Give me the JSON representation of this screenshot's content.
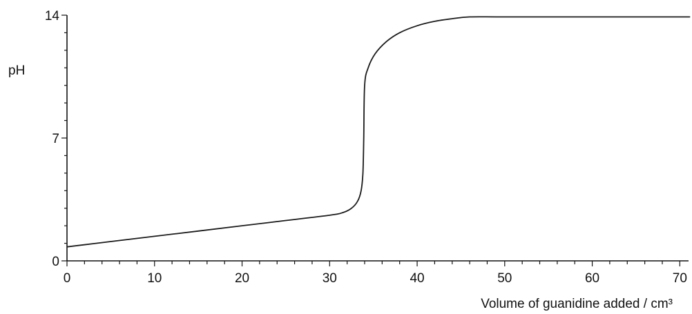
{
  "chart_data": {
    "type": "line",
    "title": "",
    "xlabel": "Volume of guanidine added / cm³",
    "ylabel": "pH",
    "xlim": [
      0,
      71
    ],
    "ylim": [
      0,
      14
    ],
    "x_ticks_major": [
      0,
      10,
      20,
      30,
      40,
      50,
      60,
      70
    ],
    "x_tick_labels": [
      "0",
      "10",
      "20",
      "30",
      "40",
      "50",
      "60",
      "70"
    ],
    "x_minor_step": 2,
    "y_ticks_major": [
      0,
      7,
      14
    ],
    "y_tick_labels": [
      "0",
      "7",
      "14"
    ],
    "y_minor_step": 1,
    "grid": false,
    "legend": "none",
    "line_color": "#1a1a1a",
    "axis_color": "#111111",
    "series": [
      {
        "points": [
          [
            0,
            0.8
          ],
          [
            5,
            1.1
          ],
          [
            10,
            1.4
          ],
          [
            15,
            1.7
          ],
          [
            20,
            2.0
          ],
          [
            25,
            2.3
          ],
          [
            30,
            2.6
          ],
          [
            31.5,
            2.75
          ],
          [
            32.5,
            3.0
          ],
          [
            33.2,
            3.4
          ],
          [
            33.6,
            4.0
          ],
          [
            33.8,
            5.0
          ],
          [
            33.9,
            7.0
          ],
          [
            34.0,
            10.0
          ],
          [
            34.4,
            11.0
          ],
          [
            35.2,
            11.8
          ],
          [
            36.5,
            12.5
          ],
          [
            38,
            13.0
          ],
          [
            40,
            13.4
          ],
          [
            42,
            13.65
          ],
          [
            44,
            13.8
          ],
          [
            46,
            13.9
          ],
          [
            50,
            13.9
          ],
          [
            60,
            13.9
          ],
          [
            70,
            13.9
          ],
          [
            71,
            13.9
          ]
        ]
      }
    ]
  }
}
